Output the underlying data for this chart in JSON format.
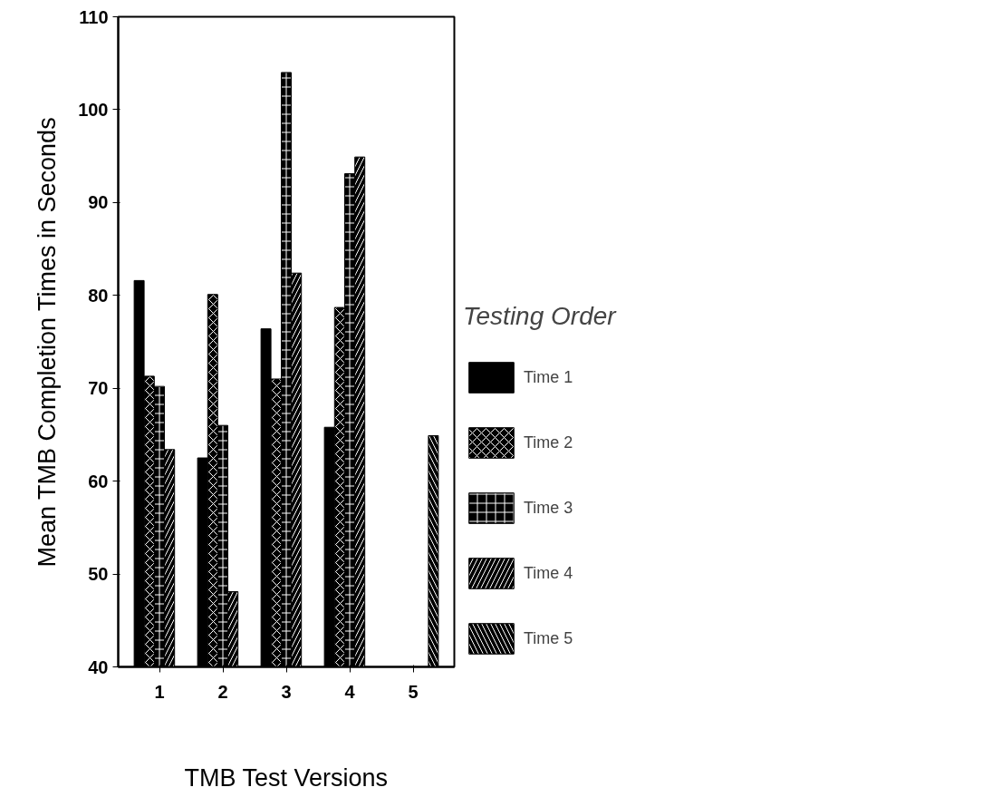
{
  "chart_data": {
    "type": "bar",
    "xlabel": "TMB Test Versions",
    "ylabel": "Mean TMB Completion Times in Seconds",
    "legend_title": "Testing Order",
    "categories": [
      "1",
      "2",
      "3",
      "4",
      "5"
    ],
    "series": [
      {
        "name": "Time 1",
        "color": "#000000",
        "values": [
          81.6,
          62.5,
          76.4,
          65.8,
          null
        ]
      },
      {
        "name": "Time 2",
        "color": "#000000",
        "values": [
          71.3,
          80.1,
          71.0,
          78.7,
          null
        ]
      },
      {
        "name": "Time 3",
        "color": "#000000",
        "values": [
          70.2,
          66.0,
          104.0,
          93.1,
          null
        ]
      },
      {
        "name": "Time 4",
        "color": "#000000",
        "values": [
          63.4,
          48.1,
          82.4,
          94.9,
          null
        ]
      },
      {
        "name": "Time 5",
        "color": "#000000",
        "values": [
          null,
          null,
          null,
          null,
          64.9
        ]
      }
    ],
    "ylim": [
      40,
      110
    ],
    "yticks": [
      40,
      50,
      60,
      70,
      80,
      90,
      100,
      110
    ],
    "grid": false,
    "legend": "right"
  }
}
